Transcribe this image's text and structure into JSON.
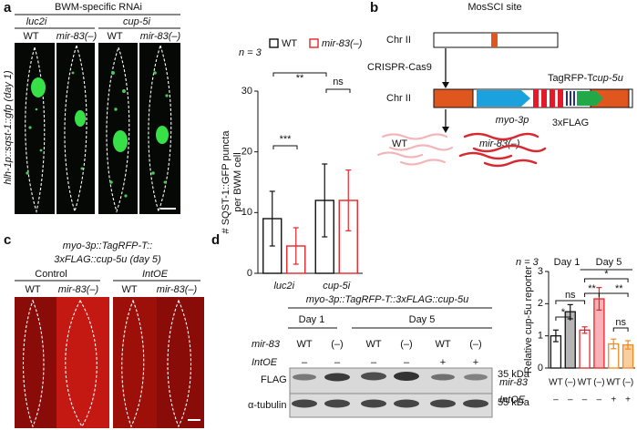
{
  "panels": {
    "a": {
      "letter": "a",
      "header": "BWM-specific RNAi",
      "groups": [
        "luc2i",
        "cup-5i"
      ],
      "lanes": [
        "WT",
        "mir-83(–)",
        "WT",
        "mir-83(–)"
      ],
      "side_label": "hlh-1p::sqst-1::gfp (day 1)"
    },
    "b": {
      "letter": "b",
      "site": "MosSCI site",
      "chr_top": "Chr II",
      "method": "CRISPR-Cas9",
      "chr_bottom": "Chr II",
      "tag": "TagRFP-T",
      "utr": "cup-5u",
      "promoter": "myo-3p",
      "flag": "3xFLAG",
      "worm_wt": "WT",
      "worm_mut": "mir-83(–)"
    },
    "c": {
      "letter": "c",
      "title_1": "myo-3p::TagRFP-T::",
      "title_2": "3xFLAG::cup-5u (day 5)",
      "groups": [
        "Control",
        "IntOE"
      ],
      "lanes": [
        "WT",
        "mir-83(–)",
        "WT",
        "mir-83(–)"
      ]
    },
    "d": {
      "letter": "d",
      "blot_title": "myo-3p::TagRFP-T::3xFLAG::cup-5u",
      "days": [
        "Day 1",
        "Day 5"
      ],
      "row1_name": "mir-83",
      "row1": [
        "WT",
        "(–)",
        "WT",
        "(–)",
        "WT",
        "(–)"
      ],
      "row2_name": "IntOE",
      "row2": [
        "–",
        "–",
        "–",
        "–",
        "+",
        "+"
      ],
      "bands": [
        "FLAG",
        "α-tubulin"
      ],
      "markers": [
        "35 kDa",
        "55 kDa"
      ]
    }
  },
  "chart_data": [
    {
      "type": "bar",
      "y_label": [
        "# SQST-1::GFP puncta",
        "per BWM cell"
      ],
      "categories": [
        "luc2i",
        "cup-5i"
      ],
      "series": [
        {
          "name": "WT",
          "color": "#111111",
          "values": [
            9,
            12
          ],
          "errors": [
            4.5,
            6
          ]
        },
        {
          "name": "mir-83(–)",
          "color": "#e3262b",
          "values": [
            4.5,
            12
          ],
          "errors": [
            3,
            5
          ]
        }
      ],
      "ylim": [
        0,
        30
      ],
      "yticks": [
        0,
        10,
        20,
        30
      ],
      "annotations": [
        "n = 3",
        "***",
        "**",
        "ns"
      ]
    },
    {
      "type": "bar",
      "y_label": "Relative cup-5u reporter",
      "categories": [
        "WT",
        "(–)",
        "WT",
        "(–)",
        "WT",
        "(–)"
      ],
      "row_names": [
        "mir-83",
        "IntOE"
      ],
      "row2": [
        "–",
        "–",
        "–",
        "–",
        "+",
        "+"
      ],
      "values": [
        1.0,
        1.75,
        1.18,
        2.15,
        0.75,
        0.72
      ],
      "errors": [
        0.18,
        0.22,
        0.1,
        0.35,
        0.15,
        0.13
      ],
      "edge_colors": [
        "#111111",
        "#111111",
        "#e3262b",
        "#e3262b",
        "#f08a24",
        "#f08a24"
      ],
      "fill_colors": [
        "#ffffff",
        "#b5b5b5",
        "#ffffff",
        "#f7b3b8",
        "#ffffff",
        "#f9cf9f"
      ],
      "ylim": [
        0,
        3
      ],
      "yticks": [
        0,
        1,
        2,
        3
      ],
      "annotations": [
        "n = 3",
        "Day 1",
        "Day 5",
        "*",
        "ns",
        "*",
        "**",
        "**",
        "ns"
      ]
    }
  ]
}
